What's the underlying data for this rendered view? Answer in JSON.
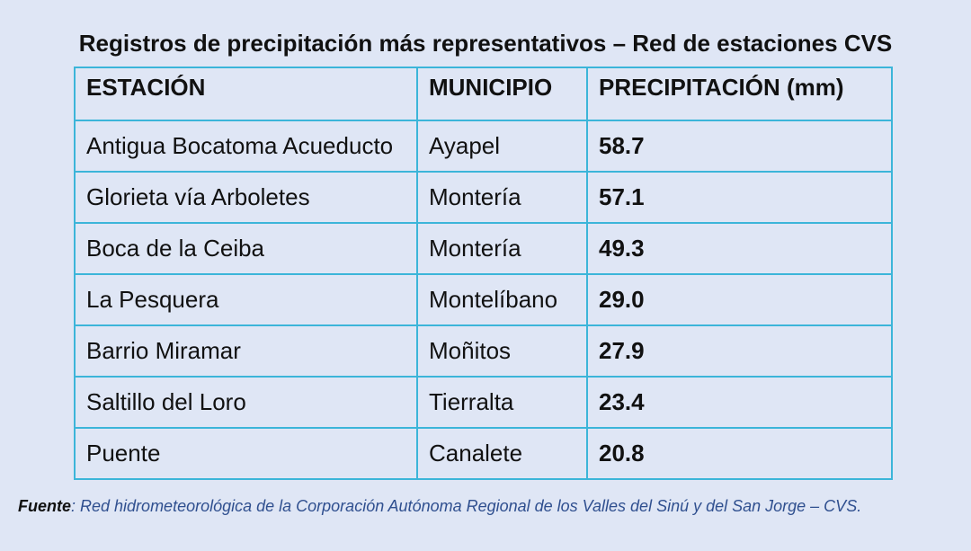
{
  "title": "Registros de precipitación más representativos – Red de estaciones CVS",
  "table": {
    "headers": [
      "ESTACIÓN",
      "MUNICIPIO",
      "PRECIPITACIÓN (mm)"
    ],
    "rows": [
      [
        "Antigua Bocatoma Acueducto",
        "Ayapel",
        "58.7"
      ],
      [
        "Glorieta vía Arboletes",
        "Montería",
        "57.1"
      ],
      [
        "Boca de la Ceiba",
        "Montería",
        "49.3"
      ],
      [
        "La Pesquera",
        "Montelíbano",
        "29.0"
      ],
      [
        "Barrio Miramar",
        "Moñitos",
        "27.9"
      ],
      [
        "Saltillo del Loro",
        "Tierralta",
        "23.4"
      ],
      [
        "Puente",
        "Canalete",
        "20.8"
      ]
    ]
  },
  "source": {
    "label": "Fuente",
    "text": ": Red hidrometeorológica de la Corporación Autónoma Regional de los Valles del Sinú y del San Jorge – CVS."
  },
  "colors": {
    "background": "#dfe6f5",
    "table_border": "#3cb5d9",
    "source_text": "#2f4f8f"
  }
}
